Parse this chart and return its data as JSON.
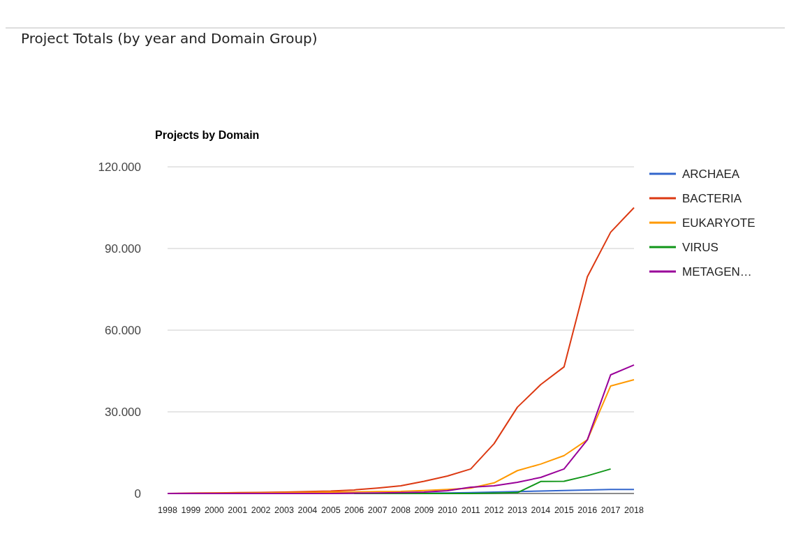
{
  "chart_data": {
    "type": "line",
    "title": "Project Totals (by year and Domain Group)",
    "subtitle": "Projects by Domain",
    "x": [
      1998,
      1999,
      2000,
      2001,
      2002,
      2003,
      2004,
      2005,
      2006,
      2007,
      2008,
      2009,
      2010,
      2011,
      2012,
      2013,
      2014,
      2015,
      2016,
      2017,
      2018
    ],
    "xlim": [
      1998,
      2018
    ],
    "xticks": [
      1998,
      1999,
      2000,
      2001,
      2002,
      2003,
      2004,
      2005,
      2006,
      2007,
      2008,
      2009,
      2010,
      2011,
      2012,
      2013,
      2014,
      2015,
      2016,
      2017,
      2018
    ],
    "ylim": [
      0,
      120000
    ],
    "yticks": [
      {
        "value": 0,
        "label": "0"
      },
      {
        "value": 30000,
        "label": "30.000"
      },
      {
        "value": 60000,
        "label": "60.000"
      },
      {
        "value": 90000,
        "label": "90.000"
      },
      {
        "value": 120000,
        "label": "120.000"
      }
    ],
    "grid": "y",
    "legend": "right",
    "marker": "none",
    "line_style": "solid",
    "series": [
      {
        "name": "ARCHAEA",
        "color": "#3366cc",
        "values": [
          null,
          null,
          null,
          null,
          null,
          null,
          null,
          null,
          null,
          null,
          null,
          100,
          200,
          300,
          500,
          700,
          900,
          1100,
          1300,
          1500,
          1500
        ]
      },
      {
        "name": "BACTERIA",
        "color": "#dc3912",
        "values": [
          0,
          100,
          200,
          300,
          400,
          500,
          700,
          900,
          1300,
          2000,
          2800,
          4500,
          6400,
          9000,
          18300,
          31700,
          40000,
          46500,
          79600,
          96000,
          105000
        ]
      },
      {
        "name": "EUKARYOTE",
        "color": "#ff9900",
        "values": [
          0,
          0,
          100,
          100,
          200,
          300,
          400,
          500,
          600,
          700,
          800,
          1100,
          1500,
          2000,
          3900,
          8400,
          10800,
          13900,
          19700,
          39500,
          41800
        ]
      },
      {
        "name": "VIRUS",
        "color": "#109618",
        "values": [
          null,
          null,
          null,
          null,
          null,
          null,
          null,
          null,
          0,
          0,
          0,
          0,
          0,
          0,
          100,
          300,
          4400,
          4500,
          6500,
          9000,
          null
        ]
      },
      {
        "name": "METAGEN…",
        "color": "#990099",
        "values": [
          0,
          0,
          0,
          0,
          0,
          0,
          0,
          0,
          100,
          200,
          300,
          500,
          1000,
          2300,
          2800,
          4100,
          5900,
          9000,
          19700,
          43600,
          47200
        ]
      }
    ]
  }
}
